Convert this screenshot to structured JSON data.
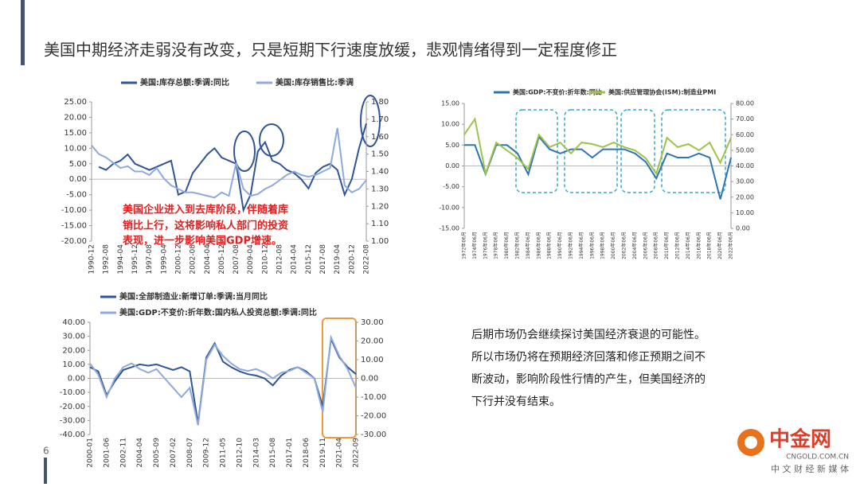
{
  "title": "美国中期经济走弱没有改变，只是短期下行速度放缓，悲观情绪得到一定程度修正",
  "annotation": [
    "美国企业进入到去库阶段，伴随着库",
    "销比上行，这将影响私人部门的投资",
    "表现，进一步影响美国GDP增速。"
  ],
  "body_text": [
    "后期市场仍会继续探讨美国经济衰退的可能性。",
    "所以市场仍将在预期经济回落和修正预期之间不",
    "断波动，影响阶段性行情的产生，但美国经济的",
    "下行并没有结束。"
  ],
  "page_number": "6",
  "logo": {
    "name": "中金网",
    "domain": "CNGOLD.COM.CN",
    "slogan": "中 文 财 经 新 媒 体"
  },
  "chart_data": [
    {
      "type": "line",
      "categories": [
        "1990-12",
        null,
        "1992-08",
        null,
        "1994-04",
        null,
        "1995-12",
        null,
        "1997-08",
        null,
        "1999-04",
        null,
        "2000-12",
        null,
        "2002-08",
        null,
        "2004-04",
        null,
        "2005-12",
        null,
        "2007-08",
        null,
        "2009-04",
        null,
        "2010-12",
        null,
        "2012-08",
        null,
        "2014-04",
        null,
        "2015-12",
        null,
        "2017-08",
        null,
        "2019-04",
        null,
        "2020-12",
        null,
        "2022-08"
      ],
      "series": [
        {
          "name": "美国:库存总额:季调:同比",
          "color": "#2f5597",
          "values": [
            null,
            4,
            3,
            5,
            6,
            8,
            5,
            4,
            3,
            4,
            5,
            6,
            -5,
            -4,
            2,
            5,
            8,
            10,
            7,
            6,
            5,
            -10,
            -5,
            9,
            12,
            6,
            5,
            3,
            2,
            0,
            -3,
            2,
            4,
            5,
            3,
            -5,
            0,
            10,
            18
          ]
        },
        {
          "name": "美国:库存销售比:季调",
          "color": "#8ea9db",
          "axis": "y2",
          "values": [
            1.55,
            1.5,
            1.48,
            1.45,
            1.42,
            1.43,
            1.4,
            1.4,
            1.38,
            1.42,
            1.36,
            1.32,
            1.3,
            1.28,
            1.28,
            1.27,
            1.26,
            1.25,
            1.28,
            1.26,
            1.45,
            1.3,
            1.26,
            1.27,
            1.3,
            1.32,
            1.35,
            1.38,
            1.4,
            1.38,
            1.37,
            1.38,
            1.4,
            1.42,
            1.65,
            1.32,
            1.28,
            1.3,
            1.35
          ]
        }
      ],
      "ylim": [
        -20,
        25
      ],
      "yticks": [
        {
          "value": -20,
          "label": "-20.00"
        },
        {
          "value": -15,
          "label": "-15.00"
        },
        {
          "value": -10,
          "label": "-10.00"
        },
        {
          "value": -5,
          "label": "-5.00"
        },
        {
          "value": 0,
          "label": "0.00"
        },
        {
          "value": 5,
          "label": "5.00"
        },
        {
          "value": 10,
          "label": "10.00"
        },
        {
          "value": 15,
          "label": "15.00"
        },
        {
          "value": 20,
          "label": "20.00"
        },
        {
          "value": 25,
          "label": "25.00"
        }
      ],
      "y2lim": [
        1.0,
        1.8
      ],
      "y2ticks": [
        {
          "value": 1.0,
          "label": "1.00"
        },
        {
          "value": 1.1,
          "label": "1.10"
        },
        {
          "value": 1.2,
          "label": "1.20"
        },
        {
          "value": 1.3,
          "label": "1.30"
        },
        {
          "value": 1.4,
          "label": "1.40"
        },
        {
          "value": 1.5,
          "label": "1.50"
        },
        {
          "value": 1.6,
          "label": "1.60"
        },
        {
          "value": 1.7,
          "label": "1.70"
        },
        {
          "value": 1.8,
          "label": "1.80"
        }
      ]
    },
    {
      "type": "line",
      "categories": [
        "1972年06月",
        "1974年06月",
        "1976年06月",
        "1978年06月",
        "1980年06月",
        "1982年06月",
        "1984年06月",
        "1986年06月",
        "1988年06月",
        "1990年06月",
        "1992年06月",
        "1994年06月",
        "1996年06月",
        "1998年06月",
        "2000年06月",
        "2002年06月",
        "2004年06月",
        "2006年06月",
        "2008年06月",
        "2010年06月",
        "2012年06月",
        "2014年06月",
        "2016年06月",
        "2018年06月",
        "2020年06月",
        "2022年06月"
      ],
      "series": [
        {
          "name": "美国:GDP:不变价:折年数:同比",
          "color": "#2e75b6",
          "values": [
            5,
            5,
            -2,
            5,
            5,
            3,
            -2,
            7,
            4,
            3,
            4,
            4,
            2,
            4,
            4,
            4,
            3,
            1,
            -3,
            3,
            2,
            2,
            3,
            2,
            -8,
            2
          ]
        },
        {
          "name": "美国:供应管理协会(ISM):制造业PMI",
          "color": "#9dc34a",
          "axis": "y2",
          "values": [
            60,
            70,
            35,
            55,
            50,
            45,
            38,
            60,
            52,
            55,
            48,
            55,
            54,
            52,
            55,
            52,
            50,
            45,
            35,
            58,
            52,
            54,
            50,
            55,
            42,
            58
          ]
        }
      ],
      "ylim": [
        -15,
        15
      ],
      "yticks": [
        {
          "value": -15,
          "label": "-15.00"
        },
        {
          "value": -10,
          "label": "-10.00"
        },
        {
          "value": -5,
          "label": "-5.00"
        },
        {
          "value": 0,
          "label": "0.00"
        },
        {
          "value": 5,
          "label": "5.00"
        },
        {
          "value": 10,
          "label": "10.00"
        },
        {
          "value": 15,
          "label": "15.00"
        }
      ],
      "y2lim": [
        0,
        80
      ],
      "y2ticks": [
        {
          "value": 0,
          "label": "0.00"
        },
        {
          "value": 10,
          "label": "10.00"
        },
        {
          "value": 20,
          "label": "20.00"
        },
        {
          "value": 30,
          "label": "30.00"
        },
        {
          "value": 40,
          "label": "40.00"
        },
        {
          "value": 50,
          "label": "50.00"
        },
        {
          "value": 60,
          "label": "60.00"
        },
        {
          "value": 70,
          "label": "70.00"
        },
        {
          "value": 80,
          "label": "80.00"
        }
      ]
    },
    {
      "type": "line",
      "categories": [
        "2000-01",
        null,
        "2001-06",
        null,
        "2002-11",
        null,
        "2004-04",
        null,
        "2005-09",
        null,
        "2007-02",
        null,
        "2008-07",
        null,
        "2009-12",
        null,
        "2011-05",
        null,
        "2012-10",
        null,
        "2014-03",
        null,
        "2015-08",
        null,
        "2017-01",
        null,
        "2018-06",
        null,
        "2019-11",
        null,
        "2021-04",
        null,
        "2022-09"
      ],
      "series": [
        {
          "name": "美国:全部制造业:新增订单:季调:当月同比",
          "color": "#2f5597",
          "values": [
            8,
            5,
            -12,
            -2,
            6,
            8,
            10,
            9,
            10,
            8,
            6,
            8,
            5,
            -32,
            15,
            25,
            12,
            8,
            5,
            3,
            2,
            0,
            -5,
            2,
            6,
            8,
            5,
            0,
            -20,
            28,
            15,
            8,
            3
          ]
        },
        {
          "name": "美国:GDP:不变价:折年数:国内私人投资总额:季调:同比",
          "color": "#8ea9db",
          "axis": "y2",
          "values": [
            8,
            2,
            -10,
            0,
            6,
            8,
            5,
            3,
            5,
            0,
            -5,
            -10,
            -5,
            -25,
            10,
            18,
            12,
            8,
            5,
            4,
            5,
            3,
            0,
            3,
            4,
            6,
            3,
            0,
            -18,
            22,
            12,
            5,
            -5
          ]
        }
      ],
      "ylim": [
        -40,
        40
      ],
      "yticks": [
        {
          "value": -40,
          "label": "-40.00"
        },
        {
          "value": -30,
          "label": "-30.00"
        },
        {
          "value": -20,
          "label": "-20.00"
        },
        {
          "value": -10,
          "label": "-10.00"
        },
        {
          "value": 0,
          "label": "0.00"
        },
        {
          "value": 10,
          "label": "10.00"
        },
        {
          "value": 20,
          "label": "20.00"
        },
        {
          "value": 30,
          "label": "30.00"
        },
        {
          "value": 40,
          "label": "40.00"
        }
      ],
      "y2lim": [
        -30,
        30
      ],
      "y2ticks": [
        {
          "value": -30,
          "label": "-30.00"
        },
        {
          "value": -20,
          "label": "-20.00"
        },
        {
          "value": -10,
          "label": "-10.00"
        },
        {
          "value": 0,
          "label": "0.00"
        },
        {
          "value": 10,
          "label": "10.00"
        },
        {
          "value": 20,
          "label": "20.00"
        },
        {
          "value": 30,
          "label": "30.00"
        }
      ]
    }
  ]
}
